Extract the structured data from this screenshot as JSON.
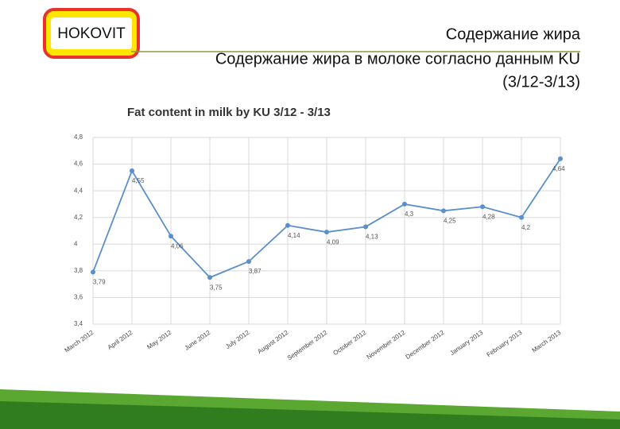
{
  "logo": "HOKOVIT",
  "header": {
    "title": "Содержание жира",
    "subtitle_line1": "Содержание жира в молоке согласно данным KU",
    "subtitle_line2": "(3/12-3/13)"
  },
  "chart_data": {
    "type": "line",
    "title": "Fat content in milk by KU 3/12 - 3/13",
    "categories": [
      "March 2012",
      "April 2012",
      "May 2012",
      "June 2012",
      "July 2012",
      "August 2012",
      "September 2012",
      "October 2012",
      "November 2012",
      "December 2012",
      "January 2013",
      "February 2013",
      "March 2013"
    ],
    "values": [
      3.79,
      4.55,
      4.06,
      3.75,
      3.87,
      4.14,
      4.09,
      4.13,
      4.3,
      4.25,
      4.28,
      4.2,
      4.64
    ],
    "value_labels": [
      "3,79",
      "4,55",
      "4,06",
      "3,75",
      "3,87",
      "4,14",
      "4,09",
      "4,13",
      "4,3",
      "4,25",
      "4,28",
      "4,2",
      "4,64"
    ],
    "color": "#5b8fcb",
    "ylim": [
      3.4,
      4.8
    ],
    "yticks": [
      {
        "value": 3.4,
        "label": "3,4"
      },
      {
        "value": 3.6,
        "label": "3,6"
      },
      {
        "value": 3.8,
        "label": "3,8"
      },
      4,
      {
        "value": 4.2,
        "label": "4,2"
      },
      {
        "value": 4.4,
        "label": "4,4"
      },
      {
        "value": 4.6,
        "label": "4,6"
      },
      {
        "value": 4.8,
        "label": "4,8"
      }
    ],
    "grid": true
  }
}
